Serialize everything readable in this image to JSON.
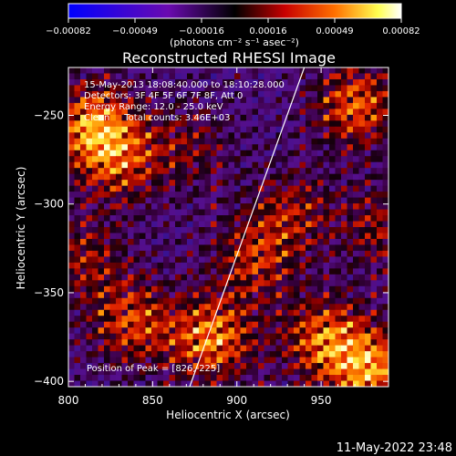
{
  "chart_data": {
    "type": "heatmap",
    "title": "Reconstructed RHESSI Image",
    "xlabel": "Heliocentric X (arcsec)",
    "ylabel": "Heliocentric Y (arcsec)",
    "xlim": [
      800,
      990
    ],
    "ylim": [
      -403,
      -223
    ],
    "x_ticks": [
      800,
      850,
      900,
      950
    ],
    "y_ticks": [
      -250,
      -300,
      -350,
      -400
    ],
    "x_tick_labels": [
      "800",
      "850",
      "900",
      "950"
    ],
    "y_tick_labels": [
      "−250",
      "−300",
      "−350",
      "−400"
    ],
    "colorbar": {
      "min": -0.00082,
      "max": 0.00082,
      "tick_labels": [
        "−0.00082",
        "−0.00049",
        "−0.00016",
        "0.00016",
        "0.00049",
        "0.00082"
      ],
      "unit_label": "(photons cm⁻² s⁻¹ asec⁻²)",
      "colors": [
        "#0000ff",
        "#5a0aa0",
        "#1a0010",
        "#c00000",
        "#ff6a00",
        "#ffff60",
        "#ffffff"
      ]
    },
    "info_lines": [
      "15-May-2013 18:08:40.000 to 18:10:28.000",
      "Detectors: 3F 4F 5F 6F 7F 8F, Att 0",
      "Energy Range: 12.0 - 25.0 keV",
      "Clean     Total counts: 3.46E+03"
    ],
    "peak_label": "Position of Peak = [826,-225]",
    "limb_line": {
      "x": [
        872,
        940
      ],
      "y": [
        -403,
        -223
      ]
    },
    "peak": [
      826,
      -225
    ],
    "timestamp": "11-May-2022 23:48"
  }
}
